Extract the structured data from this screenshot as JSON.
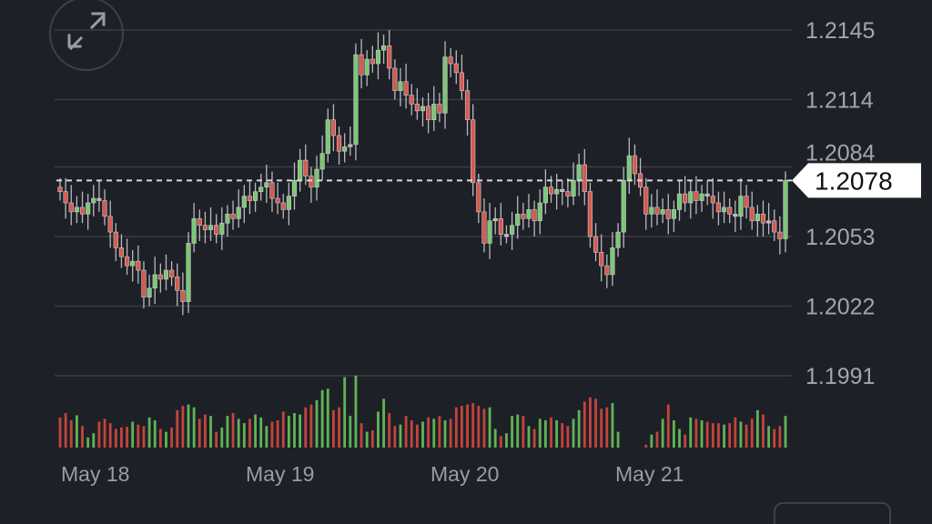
{
  "chart_data": {
    "type": "candlestick",
    "y_ticks": [
      "1.2145",
      "1.2114",
      "1.2084",
      "1.2053",
      "1.2022",
      "1.1991"
    ],
    "ylim": [
      1.1991,
      1.2145
    ],
    "x_ticks": [
      "May 18",
      "May 19",
      "May 20",
      "May 21"
    ],
    "current_price": 1.2078,
    "current_price_label": "1.2078",
    "grid": true,
    "colors": {
      "up": "#7cc873",
      "down": "#d65a4f",
      "background": "#1e2027",
      "grid": "#3b3d44"
    },
    "first_open": 1.2075,
    "close": [
      1.2073,
      1.2068,
      1.2064,
      1.2066,
      1.2063,
      1.2068,
      1.207,
      1.2069,
      1.2062,
      1.2055,
      1.2048,
      1.2044,
      1.204,
      1.2042,
      1.2038,
      1.2026,
      1.203,
      1.2036,
      1.2034,
      1.2038,
      1.2035,
      1.2029,
      1.2024,
      1.205,
      1.2061,
      1.2058,
      1.2056,
      1.2058,
      1.2054,
      1.2059,
      1.2063,
      1.2061,
      1.2066,
      1.2071,
      1.2069,
      1.2073,
      1.2075,
      1.2077,
      1.207,
      1.2068,
      1.2065,
      1.2071,
      1.2078,
      1.2087,
      1.208,
      1.2075,
      1.2083,
      1.209,
      1.2105,
      1.2098,
      1.2091,
      1.2093,
      1.2094,
      1.2134,
      1.2125,
      1.2132,
      1.213,
      1.2136,
      1.2138,
      1.2128,
      1.2118,
      1.2122,
      1.2116,
      1.2112,
      1.2109,
      1.2111,
      1.2105,
      1.2112,
      1.2108,
      1.2133,
      1.213,
      1.2126,
      1.2118,
      1.2105,
      1.2077,
      1.2064,
      1.205,
      1.206,
      1.2061,
      1.2054,
      1.2054,
      1.2058,
      1.2063,
      1.2061,
      1.2065,
      1.206,
      1.2068,
      1.2075,
      1.2072,
      1.2074,
      1.2073,
      1.2071,
      1.2078,
      1.2085,
      1.2073,
      1.2053,
      1.2046,
      1.204,
      1.2036,
      1.2048,
      1.2055,
      1.2078,
      1.2089,
      1.2081,
      1.2075,
      1.2063,
      1.2066,
      1.2063,
      1.2065,
      1.2061,
      1.2065,
      1.2072,
      1.2068,
      1.2073,
      1.2069,
      1.2072,
      1.2071,
      1.2068,
      1.2064,
      1.2066,
      1.2063,
      1.2062,
      1.2071,
      1.2066,
      1.206,
      1.2063,
      1.2059,
      1.206,
      1.2055,
      1.2052,
      1.2078
    ],
    "volume": [
      42,
      48,
      38,
      45,
      30,
      14,
      20,
      36,
      40,
      34,
      26,
      28,
      29,
      36,
      32,
      30,
      42,
      38,
      26,
      22,
      28,
      52,
      58,
      60,
      56,
      40,
      46,
      44,
      22,
      28,
      44,
      48,
      40,
      34,
      40,
      46,
      42,
      30,
      36,
      38,
      50,
      44,
      48,
      46,
      56,
      60,
      66,
      80,
      82,
      52,
      56,
      98,
      44,
      100,
      34,
      22,
      24,
      50,
      68,
      48,
      30,
      32,
      44,
      38,
      32,
      36,
      42,
      40,
      44,
      38,
      40,
      56,
      58,
      60,
      62,
      58,
      54,
      56,
      26,
      16,
      20,
      44,
      46,
      44,
      30,
      26,
      40,
      38,
      42,
      38,
      34,
      30,
      40,
      52,
      64,
      70,
      68,
      54,
      56,
      62,
      22,
      0,
      0,
      0,
      0,
      4,
      18,
      22,
      40,
      60,
      38,
      26,
      18,
      42,
      40,
      38,
      36,
      34,
      34,
      32,
      34,
      42,
      36,
      32,
      40,
      52,
      46,
      30,
      26,
      30,
      44
    ],
    "volume_max": 100
  },
  "ui": {
    "expand_icon": "expand-arrows-icon"
  }
}
